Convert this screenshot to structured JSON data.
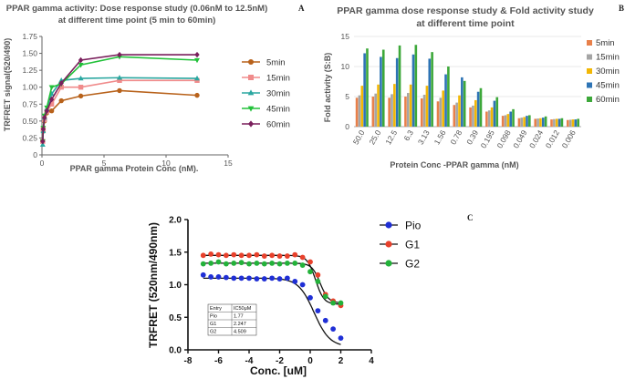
{
  "panel_labels": {
    "a": "A",
    "b": "B",
    "c": "C"
  },
  "chart_data": [
    {
      "type": "line",
      "title_line1": "PPAR gamma activity: Dose response study (0.06nM to 12.5nM)",
      "title_line2": "at different time point (5 min to 60min)",
      "xlabel": "PPAR gamma Protein Conc (nM).",
      "ylabel": "TRFRET signal(520/490)",
      "xlim": [
        0,
        15
      ],
      "ylim": [
        0,
        1.75
      ],
      "xticks": [
        "0",
        "5",
        "10",
        "15"
      ],
      "yticks": [
        "0",
        "0.25",
        "0.50",
        "0.75",
        "1.00",
        "1.25",
        "1.50",
        "1.75"
      ],
      "x": [
        0.06,
        0.1,
        0.2,
        0.39,
        0.78,
        1.56,
        3.13,
        6.25,
        12.5
      ],
      "series": [
        {
          "name": "5min",
          "color": "#b8621b",
          "marker": "circle",
          "values": [
            0.2,
            0.35,
            0.5,
            0.62,
            0.65,
            0.8,
            0.87,
            0.95,
            0.88
          ]
        },
        {
          "name": "15min",
          "color": "#f08b8b",
          "marker": "square",
          "values": [
            0.2,
            0.38,
            0.52,
            0.64,
            0.75,
            1.0,
            1.0,
            1.1,
            1.1
          ]
        },
        {
          "name": "30min",
          "color": "#2aa7a0",
          "marker": "triangle",
          "values": [
            0.15,
            0.35,
            0.55,
            0.68,
            0.9,
            1.1,
            1.13,
            1.14,
            1.13
          ]
        },
        {
          "name": "45min",
          "color": "#22c13a",
          "marker": "triangle-down",
          "values": [
            0.2,
            0.4,
            0.58,
            0.7,
            1.0,
            1.05,
            1.33,
            1.45,
            1.4
          ]
        },
        {
          "name": "60min",
          "color": "#7a1f5c",
          "marker": "diamond",
          "values": [
            0.2,
            0.38,
            0.55,
            0.65,
            0.82,
            1.06,
            1.4,
            1.48,
            1.48
          ]
        }
      ]
    },
    {
      "type": "bar",
      "title_line1": "PPAR gamma dose response study & Fold activity study",
      "title_line2": "at different time point",
      "xlabel": "Protein Conc -PPAR gamma (nM)",
      "ylabel": "Fold activity (S:B)",
      "ylim": [
        0,
        15
      ],
      "yticks": [
        "0",
        "5",
        "10",
        "15"
      ],
      "categories": [
        "50.0",
        "25.0",
        "12.5",
        "6.3",
        "3.13",
        "1.56",
        "0.78",
        "0.39",
        "0.195",
        "0.098",
        "0.049",
        "0.024",
        "0.012",
        "0.006"
      ],
      "series": [
        {
          "name": "5min",
          "color": "#e8804a",
          "values": [
            4.8,
            5.0,
            4.8,
            5.0,
            4.7,
            4.2,
            3.6,
            3.2,
            2.5,
            1.8,
            1.4,
            1.3,
            1.2,
            1.1
          ]
        },
        {
          "name": "15min",
          "color": "#a5a5a5",
          "values": [
            5.2,
            5.5,
            5.4,
            5.6,
            5.3,
            4.8,
            4.0,
            3.5,
            2.7,
            1.9,
            1.5,
            1.35,
            1.25,
            1.15
          ]
        },
        {
          "name": "30min",
          "color": "#f2b705",
          "values": [
            6.8,
            7.0,
            7.1,
            7.0,
            6.8,
            6.0,
            5.2,
            4.4,
            3.2,
            2.1,
            1.6,
            1.4,
            1.3,
            1.2
          ]
        },
        {
          "name": "45min",
          "color": "#2e74b5",
          "values": [
            12.2,
            11.6,
            11.4,
            12.0,
            11.3,
            8.7,
            8.2,
            5.8,
            4.3,
            2.5,
            1.8,
            1.5,
            1.3,
            1.2
          ]
        },
        {
          "name": "60min",
          "color": "#3da83a",
          "values": [
            13.0,
            12.8,
            13.5,
            13.6,
            12.4,
            10.0,
            7.6,
            6.4,
            4.9,
            2.9,
            1.9,
            1.7,
            1.4,
            1.3
          ]
        }
      ]
    },
    {
      "type": "scatter",
      "xlabel": "Conc. [uM]",
      "ylabel": "TRFRET (520nm/490nm)",
      "xlim": [
        -8,
        4
      ],
      "ylim": [
        0,
        2.0
      ],
      "xticks": [
        "-8",
        "-6",
        "-4",
        "-2",
        "0",
        "2",
        "4"
      ],
      "yticks": [
        "0.0",
        "0.5",
        "1.0",
        "1.5",
        "2.0"
      ],
      "x": [
        -7,
        -6.5,
        -6,
        -5.5,
        -5,
        -4.5,
        -4,
        -3.5,
        -3,
        -2.5,
        -2,
        -1.5,
        -1,
        -0.5,
        0,
        0.5,
        1,
        1.5,
        2
      ],
      "series": [
        {
          "name": "Pio",
          "color": "#1f2fd6",
          "values": [
            1.15,
            1.12,
            1.12,
            1.11,
            1.1,
            1.1,
            1.1,
            1.09,
            1.09,
            1.1,
            1.09,
            1.1,
            1.05,
            1.0,
            0.8,
            0.6,
            0.45,
            0.32,
            0.18
          ]
        },
        {
          "name": "G1",
          "color": "#e8412c",
          "values": [
            1.45,
            1.47,
            1.46,
            1.45,
            1.46,
            1.45,
            1.45,
            1.46,
            1.44,
            1.45,
            1.44,
            1.44,
            1.46,
            1.42,
            1.35,
            1.15,
            0.85,
            0.75,
            0.68
          ]
        },
        {
          "name": "G2",
          "color": "#23b23a",
          "values": [
            1.32,
            1.33,
            1.35,
            1.32,
            1.33,
            1.34,
            1.32,
            1.33,
            1.32,
            1.33,
            1.32,
            1.33,
            1.33,
            1.3,
            1.2,
            1.05,
            0.82,
            0.72,
            0.72
          ]
        }
      ],
      "fits": [
        {
          "name": "Pio",
          "top": 1.1,
          "bottom": 0.05,
          "logic50": 0.25,
          "hill": 0.85
        },
        {
          "name": "G1",
          "top": 1.45,
          "bottom": 0.7,
          "logic50": 0.35,
          "hill": 1.6
        },
        {
          "name": "G2",
          "top": 1.33,
          "bottom": 0.72,
          "logic50": 0.65,
          "hill": 1.6
        }
      ],
      "table": {
        "headers": [
          "Entry",
          "IC50μM"
        ],
        "rows": [
          [
            "Pio",
            "1.77"
          ],
          [
            "G1",
            "2.247"
          ],
          [
            "G2",
            "4.509"
          ]
        ]
      }
    }
  ]
}
